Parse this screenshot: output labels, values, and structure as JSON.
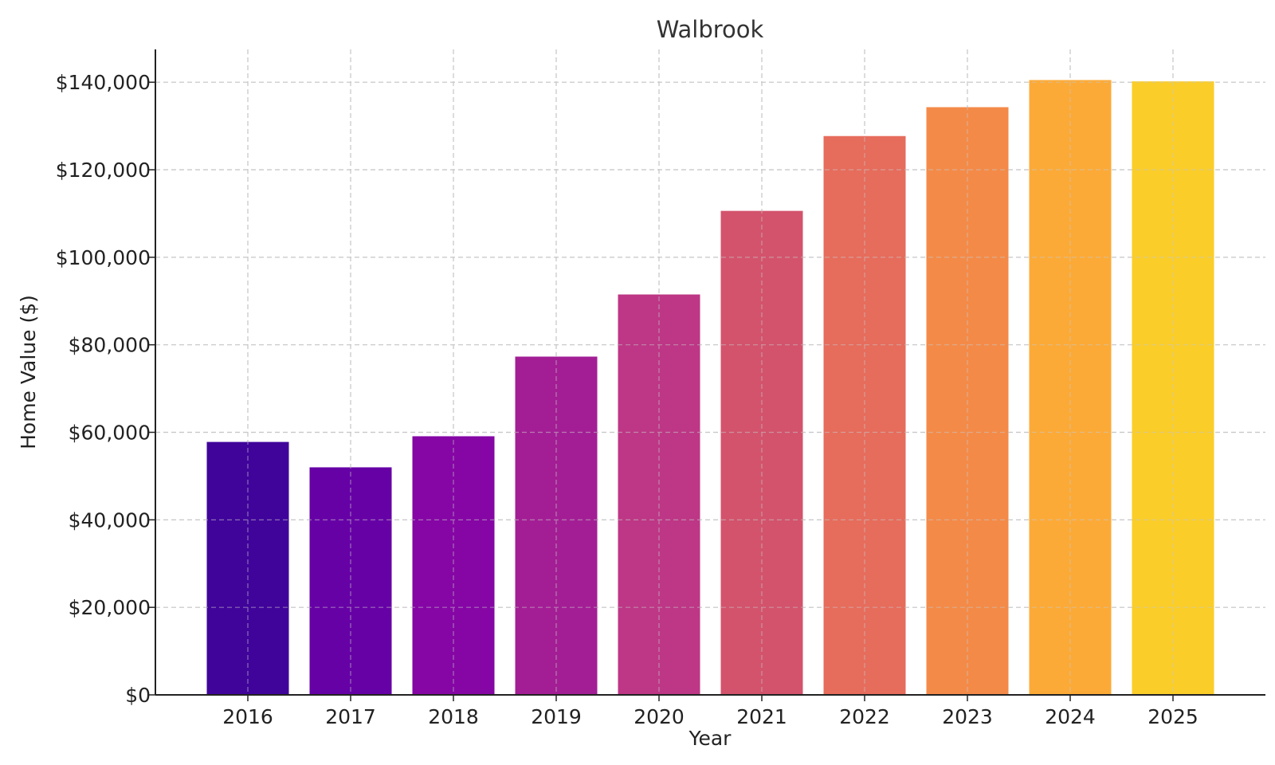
{
  "chart_data": {
    "type": "bar",
    "title": "Walbrook",
    "xlabel": "Year",
    "ylabel": "Home Value ($)",
    "categories": [
      "2016",
      "2017",
      "2018",
      "2019",
      "2020",
      "2021",
      "2022",
      "2023",
      "2024",
      "2025"
    ],
    "values": [
      57800,
      52000,
      59100,
      77300,
      91500,
      110600,
      127700,
      134300,
      140500,
      140200
    ],
    "colors": [
      "#40049b",
      "#6601a6",
      "#8506a5",
      "#a31e95",
      "#bd3786",
      "#d3536c",
      "#e66c5c",
      "#f48a48",
      "#fcaa37",
      "#facd29"
    ],
    "ylim": [
      0,
      147500
    ],
    "yticks": [
      0,
      20000,
      40000,
      60000,
      80000,
      100000,
      120000,
      140000
    ],
    "ytick_labels": [
      "$0",
      "$20,000",
      "$40,000",
      "$60,000",
      "$80,000",
      "$100,000",
      "$120,000",
      "$140,000"
    ],
    "grid": true,
    "legend": "none"
  }
}
